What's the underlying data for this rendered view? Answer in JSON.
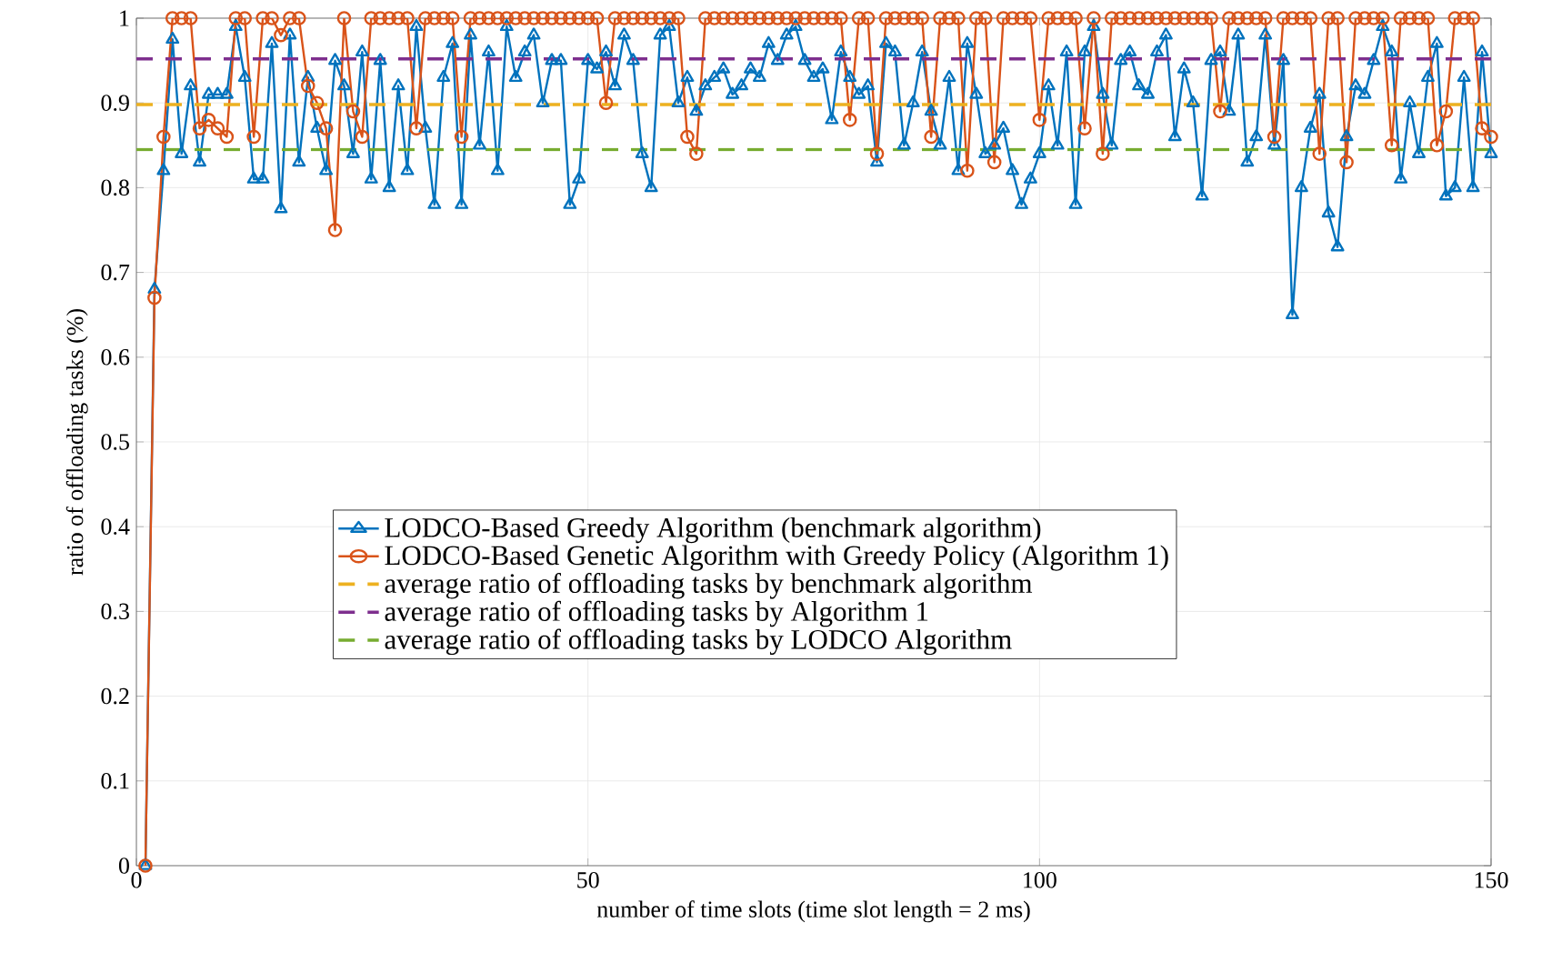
{
  "chart_data": {
    "type": "line",
    "xlabel": "number of time slots (time slot length = 2 ms)",
    "ylabel": "ratio of offloading tasks (%)",
    "x": [
      1,
      2,
      3,
      4,
      5,
      6,
      7,
      8,
      9,
      10,
      11,
      12,
      13,
      14,
      15,
      16,
      17,
      18,
      19,
      20,
      21,
      22,
      23,
      24,
      25,
      26,
      27,
      28,
      29,
      30,
      31,
      32,
      33,
      34,
      35,
      36,
      37,
      38,
      39,
      40,
      41,
      42,
      43,
      44,
      45,
      46,
      47,
      48,
      49,
      50,
      51,
      52,
      53,
      54,
      55,
      56,
      57,
      58,
      59,
      60,
      61,
      62,
      63,
      64,
      65,
      66,
      67,
      68,
      69,
      70,
      71,
      72,
      73,
      74,
      75,
      76,
      77,
      78,
      79,
      80,
      81,
      82,
      83,
      84,
      85,
      86,
      87,
      88,
      89,
      90,
      91,
      92,
      93,
      94,
      95,
      96,
      97,
      98,
      99,
      100,
      101,
      102,
      103,
      104,
      105,
      106,
      107,
      108,
      109,
      110,
      111,
      112,
      113,
      114,
      115,
      116,
      117,
      118,
      119,
      120,
      121,
      122,
      123,
      124,
      125,
      126,
      127,
      128,
      129,
      130,
      131,
      132,
      133,
      134,
      135,
      136,
      137,
      138,
      139,
      140,
      141,
      142,
      143,
      144,
      145,
      146,
      147,
      148,
      149,
      150
    ],
    "xlim": [
      0,
      150
    ],
    "xticks": [
      0,
      50,
      100,
      150
    ],
    "ylim": [
      0,
      1
    ],
    "yticks": [
      0,
      0.1,
      0.2,
      0.3,
      0.4,
      0.5,
      0.6,
      0.7,
      0.8,
      0.9,
      1
    ],
    "grid": true,
    "legend": "bottom right",
    "series": [
      {
        "name": "LODCO-Based Greedy Algorithm (benchmark algorithm)",
        "color": "#0072bd",
        "marker": "triangle",
        "values": [
          0,
          0.68,
          0.82,
          0.975,
          0.84,
          0.92,
          0.83,
          0.91,
          0.91,
          0.91,
          0.99,
          0.93,
          0.81,
          0.81,
          0.97,
          0.775,
          0.98,
          0.83,
          0.93,
          0.87,
          0.82,
          0.95,
          0.92,
          0.84,
          0.96,
          0.81,
          0.95,
          0.8,
          0.92,
          0.82,
          0.99,
          0.87,
          0.78,
          0.93,
          0.97,
          0.78,
          0.98,
          0.85,
          0.96,
          0.82,
          0.99,
          0.93,
          0.96,
          0.98,
          0.9,
          0.95,
          0.95,
          0.78,
          0.81,
          0.95,
          0.94,
          0.96,
          0.92,
          0.98,
          0.95,
          0.84,
          0.8,
          0.98,
          0.99,
          0.9,
          0.93,
          0.89,
          0.92,
          0.93,
          0.94,
          0.91,
          0.92,
          0.94,
          0.93,
          0.97,
          0.95,
          0.98,
          0.99,
          0.95,
          0.93,
          0.94,
          0.88,
          0.96,
          0.93,
          0.91,
          0.92,
          0.83,
          0.97,
          0.96,
          0.85,
          0.9,
          0.96,
          0.89,
          0.85,
          0.93,
          0.82,
          0.97,
          0.91,
          0.84,
          0.85,
          0.87,
          0.82,
          0.78,
          0.81,
          0.84,
          0.92,
          0.85,
          0.96,
          0.78,
          0.96,
          0.99,
          0.91,
          0.85,
          0.95,
          0.96,
          0.92,
          0.91,
          0.96,
          0.98,
          0.86,
          0.94,
          0.9,
          0.79,
          0.95,
          0.96,
          0.89,
          0.98,
          0.83,
          0.86,
          0.98,
          0.85,
          0.95,
          0.65,
          0.8,
          0.87,
          0.91,
          0.77,
          0.73,
          0.86,
          0.92,
          0.91,
          0.95,
          0.99,
          0.96,
          0.81,
          0.9,
          0.84,
          0.93,
          0.97,
          0.79,
          0.8,
          0.93,
          0.8,
          0.96,
          0.84
        ]
      },
      {
        "name": "LODCO-Based Genetic Algorithm with Greedy Policy (Algorithm 1)",
        "color": "#d95319",
        "marker": "circle",
        "values": [
          0,
          0.67,
          0.86,
          1,
          1,
          1,
          0.87,
          0.88,
          0.87,
          0.86,
          1,
          1,
          0.86,
          1,
          1,
          0.98,
          1,
          1,
          0.92,
          0.9,
          0.87,
          0.75,
          1,
          0.89,
          0.86,
          1,
          1,
          1,
          1,
          1,
          0.87,
          1,
          1,
          1,
          1,
          0.86,
          1,
          1,
          1,
          1,
          1,
          1,
          1,
          1,
          1,
          1,
          1,
          1,
          1,
          1,
          1,
          0.9,
          1,
          1,
          1,
          1,
          1,
          1,
          1,
          1,
          0.86,
          0.84,
          1,
          1,
          1,
          1,
          1,
          1,
          1,
          1,
          1,
          1,
          1,
          1,
          1,
          1,
          1,
          1,
          0.88,
          1,
          1,
          0.84,
          1,
          1,
          1,
          1,
          1,
          0.86,
          1,
          1,
          1,
          0.82,
          1,
          1,
          0.83,
          1,
          1,
          1,
          1,
          0.88,
          1,
          1,
          1,
          1,
          0.87,
          1,
          0.84,
          1,
          1,
          1,
          1,
          1,
          1,
          1,
          1,
          1,
          1,
          1,
          1,
          0.89,
          1,
          1,
          1,
          1,
          1,
          0.86,
          1,
          1,
          1,
          1,
          0.84,
          1,
          1,
          0.83,
          1,
          1,
          1,
          1,
          0.85,
          1,
          1,
          1,
          1,
          0.85,
          0.89,
          1,
          1,
          1,
          0.87,
          0.86
        ]
      }
    ],
    "ref_lines": [
      {
        "axis": "y",
        "value": 0.898,
        "label": "average ratio of offloading tasks by benchmark algorithm",
        "color": "#edb120",
        "line_style": "dashed"
      },
      {
        "axis": "y",
        "value": 0.952,
        "label": "average ratio of offloading tasks by Algorithm 1",
        "color": "#7e2f8e",
        "line_style": "dashed"
      },
      {
        "axis": "y",
        "value": 0.845,
        "label": "average ratio of offloading tasks by LODCO Algorithm",
        "color": "#77ac30",
        "line_style": "dashed"
      }
    ]
  }
}
